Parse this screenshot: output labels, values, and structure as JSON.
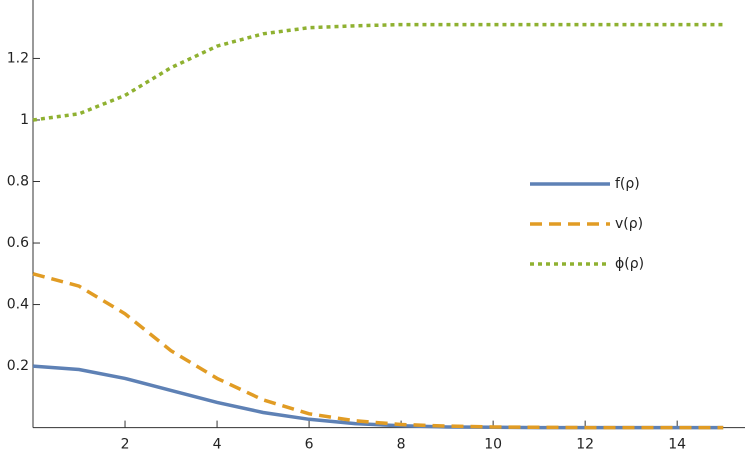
{
  "chart_data": {
    "type": "line",
    "x": [
      0,
      1,
      2,
      3,
      4,
      5,
      6,
      7,
      8,
      9,
      10,
      11,
      12,
      13,
      14,
      15
    ],
    "series": [
      {
        "name": "f(ρ)",
        "color": "#5e81b5",
        "dash": "solid",
        "values": [
          0.2,
          0.189,
          0.16,
          0.121,
          0.082,
          0.049,
          0.027,
          0.013,
          0.006,
          0.002,
          0.001,
          0,
          0,
          0,
          0,
          0
        ]
      },
      {
        "name": "v(ρ)",
        "color": "#e19c24",
        "dash": "dashed",
        "values": [
          0.5,
          0.46,
          0.37,
          0.25,
          0.16,
          0.09,
          0.045,
          0.022,
          0.01,
          0.005,
          0.002,
          0.001,
          0,
          0,
          0,
          0
        ]
      },
      {
        "name": "ϕ(ρ)",
        "color": "#8fb131",
        "dash": "dotted",
        "values": [
          1.0,
          1.02,
          1.08,
          1.17,
          1.24,
          1.28,
          1.3,
          1.306,
          1.31,
          1.31,
          1.31,
          1.31,
          1.31,
          1.31,
          1.31,
          1.31
        ]
      }
    ],
    "xlim": [
      0,
      15.3
    ],
    "ylim": [
      0,
      1.39
    ],
    "xticks": [
      2,
      4,
      6,
      8,
      10,
      12,
      14
    ],
    "yticks": [
      0.2,
      0.4,
      0.6,
      0.8,
      1.0,
      1.2
    ],
    "legend": "right"
  }
}
